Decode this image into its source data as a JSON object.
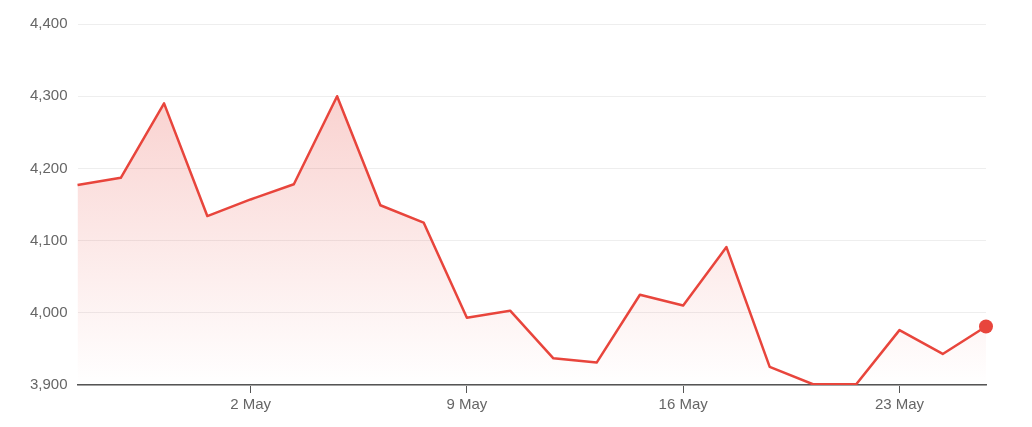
{
  "chart_data": {
    "type": "area",
    "categories": [
      null,
      null,
      null,
      null,
      "2 May",
      null,
      null,
      null,
      null,
      "9 May",
      null,
      null,
      null,
      null,
      "16 May",
      null,
      null,
      null,
      null,
      "23 May",
      null,
      null
    ],
    "series": [
      {
        "color": "#e8453c",
        "values": [
          4177,
          4187,
          4290,
          4134,
          4157,
          4178,
          4300,
          4149,
          4125,
          3993,
          4003,
          3937,
          3931,
          4025,
          4010,
          4091,
          3925,
          3901,
          3901,
          3976,
          3943,
          3981
        ]
      }
    ],
    "ylim": [
      3900,
      4400
    ],
    "yticks": [
      {
        "value": 3900,
        "label": "3,900"
      },
      {
        "value": 4000,
        "label": "4,000"
      },
      {
        "value": 4100,
        "label": "4,100"
      },
      {
        "value": 4200,
        "label": "4,200"
      },
      {
        "value": 4300,
        "label": "4,300"
      },
      {
        "value": 4400,
        "label": "4,400"
      }
    ],
    "grid": "y"
  }
}
